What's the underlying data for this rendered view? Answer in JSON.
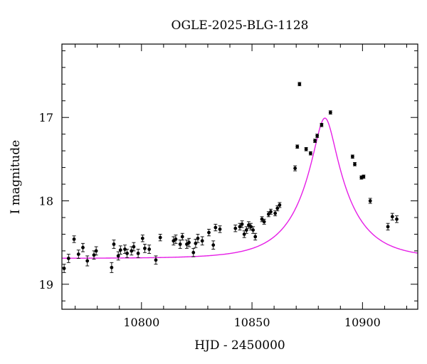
{
  "chart_data": {
    "type": "scatter",
    "title": "OGLE-2025-BLG-1128",
    "xlabel": "HJD - 2450000",
    "ylabel": "I magnitude",
    "xlim": [
      10764,
      10925
    ],
    "ylim": [
      19.3,
      16.12
    ],
    "y_inverted": true,
    "grid": false,
    "legend": "none",
    "x_ticks": [
      10800,
      10850,
      10900
    ],
    "y_ticks": [
      17,
      18,
      19
    ],
    "colors": {
      "points": "#000000",
      "model": "#e61ee6",
      "frame": "#000000"
    },
    "points": [
      {
        "x": 10765.0,
        "y": 18.81,
        "e": 0.05
      },
      {
        "x": 10767.0,
        "y": 18.69,
        "e": 0.05
      },
      {
        "x": 10769.5,
        "y": 18.46,
        "e": 0.04
      },
      {
        "x": 10771.5,
        "y": 18.64,
        "e": 0.05
      },
      {
        "x": 10773.5,
        "y": 18.56,
        "e": 0.05
      },
      {
        "x": 10775.5,
        "y": 18.72,
        "e": 0.06
      },
      {
        "x": 10778.5,
        "y": 18.65,
        "e": 0.05
      },
      {
        "x": 10779.5,
        "y": 18.6,
        "e": 0.05
      },
      {
        "x": 10786.5,
        "y": 18.8,
        "e": 0.06
      },
      {
        "x": 10787.5,
        "y": 18.52,
        "e": 0.05
      },
      {
        "x": 10789.5,
        "y": 18.66,
        "e": 0.05
      },
      {
        "x": 10790.5,
        "y": 18.59,
        "e": 0.05
      },
      {
        "x": 10792.5,
        "y": 18.58,
        "e": 0.05
      },
      {
        "x": 10793.5,
        "y": 18.63,
        "e": 0.05
      },
      {
        "x": 10795.5,
        "y": 18.6,
        "e": 0.05
      },
      {
        "x": 10796.5,
        "y": 18.55,
        "e": 0.05
      },
      {
        "x": 10798.5,
        "y": 18.63,
        "e": 0.05
      },
      {
        "x": 10800.5,
        "y": 18.45,
        "e": 0.04
      },
      {
        "x": 10801.5,
        "y": 18.57,
        "e": 0.05
      },
      {
        "x": 10803.5,
        "y": 18.58,
        "e": 0.05
      },
      {
        "x": 10806.5,
        "y": 18.71,
        "e": 0.05
      },
      {
        "x": 10808.5,
        "y": 18.44,
        "e": 0.04
      },
      {
        "x": 10814.5,
        "y": 18.48,
        "e": 0.05
      },
      {
        "x": 10815.5,
        "y": 18.46,
        "e": 0.05
      },
      {
        "x": 10817.5,
        "y": 18.52,
        "e": 0.05
      },
      {
        "x": 10818.5,
        "y": 18.43,
        "e": 0.04
      },
      {
        "x": 10820.5,
        "y": 18.52,
        "e": 0.05
      },
      {
        "x": 10821.5,
        "y": 18.5,
        "e": 0.05
      },
      {
        "x": 10823.5,
        "y": 18.62,
        "e": 0.05
      },
      {
        "x": 10824.5,
        "y": 18.51,
        "e": 0.05
      },
      {
        "x": 10825.5,
        "y": 18.45,
        "e": 0.05
      },
      {
        "x": 10827.5,
        "y": 18.48,
        "e": 0.05
      },
      {
        "x": 10830.5,
        "y": 18.38,
        "e": 0.04
      },
      {
        "x": 10832.5,
        "y": 18.53,
        "e": 0.05
      },
      {
        "x": 10833.5,
        "y": 18.32,
        "e": 0.04
      },
      {
        "x": 10835.5,
        "y": 18.34,
        "e": 0.04
      },
      {
        "x": 10842.5,
        "y": 18.33,
        "e": 0.04
      },
      {
        "x": 10844.5,
        "y": 18.31,
        "e": 0.04
      },
      {
        "x": 10845.5,
        "y": 18.28,
        "e": 0.04
      },
      {
        "x": 10846.5,
        "y": 18.4,
        "e": 0.04
      },
      {
        "x": 10847.5,
        "y": 18.35,
        "e": 0.04
      },
      {
        "x": 10848.5,
        "y": 18.29,
        "e": 0.04
      },
      {
        "x": 10849.5,
        "y": 18.31,
        "e": 0.04
      },
      {
        "x": 10850.5,
        "y": 18.35,
        "e": 0.04
      },
      {
        "x": 10851.5,
        "y": 18.43,
        "e": 0.04
      },
      {
        "x": 10854.5,
        "y": 18.22,
        "e": 0.03
      },
      {
        "x": 10855.5,
        "y": 18.25,
        "e": 0.03
      },
      {
        "x": 10857.5,
        "y": 18.16,
        "e": 0.03
      },
      {
        "x": 10858.5,
        "y": 18.13,
        "e": 0.03
      },
      {
        "x": 10860.5,
        "y": 18.15,
        "e": 0.03
      },
      {
        "x": 10861.5,
        "y": 18.09,
        "e": 0.03
      },
      {
        "x": 10862.5,
        "y": 18.05,
        "e": 0.03
      },
      {
        "x": 10869.5,
        "y": 17.61,
        "e": 0.03
      },
      {
        "x": 10870.5,
        "y": 17.35,
        "e": 0.02
      },
      {
        "x": 10871.5,
        "y": 16.6,
        "e": 0.02
      },
      {
        "x": 10874.5,
        "y": 17.38,
        "e": 0.02
      },
      {
        "x": 10876.5,
        "y": 17.43,
        "e": 0.02
      },
      {
        "x": 10878.5,
        "y": 17.28,
        "e": 0.02
      },
      {
        "x": 10879.5,
        "y": 17.22,
        "e": 0.02
      },
      {
        "x": 10881.5,
        "y": 17.09,
        "e": 0.02
      },
      {
        "x": 10885.5,
        "y": 16.94,
        "e": 0.02
      },
      {
        "x": 10895.5,
        "y": 17.47,
        "e": 0.02
      },
      {
        "x": 10896.5,
        "y": 17.56,
        "e": 0.02
      },
      {
        "x": 10899.5,
        "y": 17.72,
        "e": 0.02
      },
      {
        "x": 10900.5,
        "y": 17.71,
        "e": 0.02
      },
      {
        "x": 10903.5,
        "y": 18.0,
        "e": 0.03
      },
      {
        "x": 10911.5,
        "y": 18.31,
        "e": 0.04
      },
      {
        "x": 10913.5,
        "y": 18.19,
        "e": 0.04
      },
      {
        "x": 10915.5,
        "y": 18.22,
        "e": 0.04
      }
    ],
    "model": {
      "t0": 10883.0,
      "tE": 21.0,
      "u0": 0.216,
      "baseline": 18.69,
      "x_start": 10764,
      "x_end": 10925
    }
  }
}
